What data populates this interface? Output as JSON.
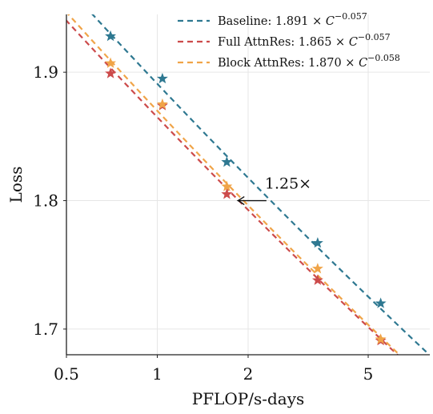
{
  "chart_data": {
    "type": "line",
    "title": "",
    "xlabel": "PFLOP/s-days",
    "ylabel": "Loss",
    "xscale": "log",
    "xlim": [
      0.5,
      8.0
    ],
    "ylim": [
      1.68,
      1.945
    ],
    "xticks": [
      {
        "value": 0.5,
        "label": "0.5"
      },
      {
        "value": 1,
        "label": "1"
      },
      {
        "value": 2,
        "label": "2"
      },
      {
        "value": 5,
        "label": "5"
      }
    ],
    "yticks": [
      {
        "value": 1.7,
        "label": "1.7"
      },
      {
        "value": 1.8,
        "label": "1.8"
      },
      {
        "value": 1.9,
        "label": "1.9"
      }
    ],
    "grid": true,
    "legend_position": "top-right",
    "series": [
      {
        "name": "Baseline: 1.891 × C^-0.057",
        "legend_prefix": "Baseline: 1.891 × ",
        "coef": 1.891,
        "exponent": -0.057,
        "exp_label": "−0.057",
        "color": "#2e7891",
        "points": [
          [
            0.7,
            1.928
          ],
          [
            1.04,
            1.895
          ],
          [
            1.7,
            1.83
          ],
          [
            3.4,
            1.767
          ],
          [
            5.5,
            1.72
          ]
        ]
      },
      {
        "name": "Full AttnRes: 1.865 × C^-0.057",
        "legend_prefix": "Full AttnRes: 1.865 × ",
        "coef": 1.865,
        "exponent": -0.057,
        "exp_label": "−0.057",
        "color": "#cc4b4b",
        "points": [
          [
            0.7,
            1.899
          ],
          [
            1.04,
            1.874
          ],
          [
            1.7,
            1.805
          ],
          [
            3.4,
            1.738
          ],
          [
            5.5,
            1.691
          ]
        ]
      },
      {
        "name": "Block AttnRes: 1.870 × C^-0.058",
        "legend_prefix": "Block AttnRes: 1.870 × ",
        "coef": 1.87,
        "exponent": -0.058,
        "exp_label": "−0.058",
        "color": "#f0a448",
        "points": [
          [
            0.7,
            1.907
          ],
          [
            1.04,
            1.875
          ],
          [
            1.7,
            1.811
          ],
          [
            3.4,
            1.747
          ],
          [
            5.5,
            1.692
          ]
        ]
      }
    ],
    "annotation": {
      "text": "1.25×",
      "arrow_from": [
        2.3,
        1.8
      ],
      "arrow_to": [
        1.85,
        1.8
      ]
    }
  }
}
